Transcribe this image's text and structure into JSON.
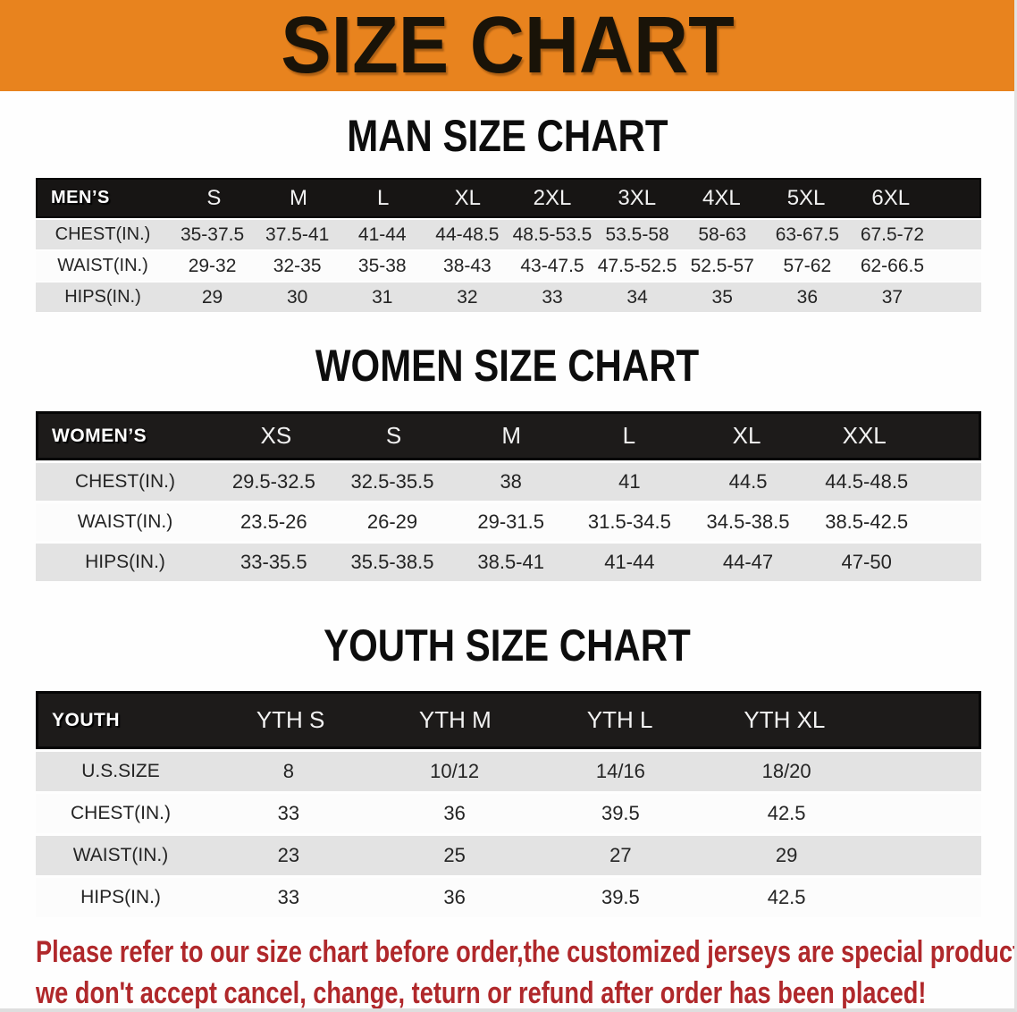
{
  "banner": {
    "title": "SIZE CHART"
  },
  "colors": {
    "banner_bg": "#E8831E",
    "banner_text": "#191308",
    "table_header_bg": "#171514",
    "stripe_gray": "#E3E3E3",
    "stripe_white": "#FCFCFC",
    "footer_red": "#B0282B"
  },
  "sections": [
    {
      "heading": "MAN SIZE CHART",
      "table": {
        "header_label": "MEN’S",
        "columns": [
          "S",
          "M",
          "L",
          "XL",
          "2XL",
          "3XL",
          "4XL",
          "5XL",
          "6XL"
        ],
        "rows": [
          {
            "label": "CHEST(IN.)",
            "values": [
              "35-37.5",
              "37.5-41",
              "41-44",
              "44-48.5",
              "48.5-53.5",
              "53.5-58",
              "58-63",
              "63-67.5",
              "67.5-72"
            ]
          },
          {
            "label": "WAIST(IN.)",
            "values": [
              "29-32",
              "32-35",
              "35-38",
              "38-43",
              "43-47.5",
              "47.5-52.5",
              "52.5-57",
              "57-62",
              "62-66.5"
            ]
          },
          {
            "label": "HIPS(IN.)",
            "values": [
              "29",
              "30",
              "31",
              "32",
              "33",
              "34",
              "35",
              "36",
              "37"
            ]
          }
        ]
      }
    },
    {
      "heading": "WOMEN SIZE CHART",
      "table": {
        "header_label": "WOMEN’S",
        "columns": [
          "XS",
          "S",
          "M",
          "L",
          "XL",
          "XXL"
        ],
        "rows": [
          {
            "label": "CHEST(IN.)",
            "values": [
              "29.5-32.5",
              "32.5-35.5",
              "38",
              "41",
              "44.5",
              "44.5-48.5"
            ]
          },
          {
            "label": "WAIST(IN.)",
            "values": [
              "23.5-26",
              "26-29",
              "29-31.5",
              "31.5-34.5",
              "34.5-38.5",
              "38.5-42.5"
            ]
          },
          {
            "label": "HIPS(IN.)",
            "values": [
              "33-35.5",
              "35.5-38.5",
              "38.5-41",
              "41-44",
              "44-47",
              "47-50"
            ]
          }
        ]
      }
    },
    {
      "heading": "YOUTH SIZE CHART",
      "table": {
        "header_label": "YOUTH",
        "columns": [
          "YTH S",
          "YTH M",
          "YTH L",
          "YTH XL"
        ],
        "rows": [
          {
            "label": "U.S.SIZE",
            "values": [
              "8",
              "10/12",
              "14/16",
              "18/20"
            ]
          },
          {
            "label": "CHEST(IN.)",
            "values": [
              "33",
              "36",
              "39.5",
              "42.5"
            ]
          },
          {
            "label": "WAIST(IN.)",
            "values": [
              "23",
              "25",
              "27",
              "29"
            ]
          },
          {
            "label": "HIPS(IN.)",
            "values": [
              "33",
              "36",
              "39.5",
              "42.5"
            ]
          }
        ]
      }
    }
  ],
  "footer": {
    "line1": "Please refer to our size chart before order,the customized jerseys are special products,",
    "line2": "we don't accept cancel, change, teturn or refund after order has been placed!"
  }
}
